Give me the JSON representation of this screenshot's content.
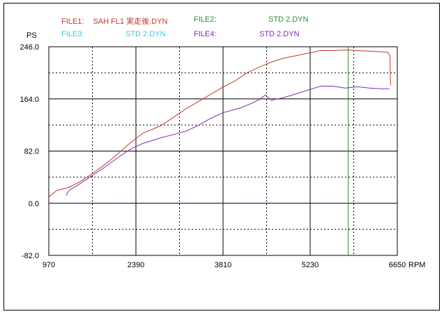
{
  "legend": {
    "file1": {
      "label": "FILE1:",
      "value": "SAH  FL1  実走後.DYN",
      "color": "#c0392b"
    },
    "file2": {
      "label": "FILE2:",
      "value": "STD 2.DYN",
      "color": "#2e8b2e"
    },
    "file3": {
      "label": "FILE3:",
      "value": "STD 2.DYN",
      "color": "#3cc8e0"
    },
    "file4": {
      "label": "FILE4:",
      "value": "STD 2.DYN",
      "color": "#7a2fb5"
    }
  },
  "chart_data": {
    "type": "line",
    "ylabel": "PS",
    "xlabel": "RPM",
    "xlim": [
      970,
      6650
    ],
    "ylim": [
      -82,
      246
    ],
    "x_ticks": [
      "970",
      "2390",
      "3810",
      "5230",
      "6650"
    ],
    "y_ticks": [
      "246.0",
      "164.0",
      "82.0",
      "0.0",
      "-82.0"
    ],
    "grid": true,
    "cursor_rpm": 5850,
    "cursor_color": "#2e8b2e",
    "zero_line_color": "#2a2ab0",
    "series": [
      {
        "name": "FILE1",
        "color": "#c0392b",
        "x": [
          970,
          1100,
          1300,
          1500,
          1700,
          1900,
          2100,
          2300,
          2500,
          2800,
          3000,
          3200,
          3500,
          3800,
          4000,
          4200,
          4400,
          4600,
          4800,
          5000,
          5200,
          5400,
          5600,
          5800,
          6000,
          6200,
          6400,
          6500,
          6530,
          6540
        ],
        "values": [
          10,
          20,
          25,
          35,
          48,
          62,
          78,
          95,
          110,
          122,
          135,
          148,
          165,
          182,
          192,
          205,
          214,
          222,
          228,
          232,
          236,
          240,
          240,
          241,
          240,
          239,
          238,
          237,
          232,
          185
        ]
      },
      {
        "name": "FILE4",
        "color": "#7a2fb5",
        "x": [
          1250,
          1300,
          1500,
          1700,
          1900,
          2100,
          2300,
          2500,
          2800,
          3000,
          3200,
          3400,
          3600,
          3800,
          4100,
          4300,
          4400,
          4500,
          4600,
          4800,
          5000,
          5200,
          5400,
          5600,
          5800,
          6000,
          6200,
          6400,
          6520
        ],
        "values": [
          12,
          20,
          32,
          45,
          58,
          72,
          85,
          94,
          103,
          108,
          113,
          122,
          133,
          142,
          150,
          158,
          163,
          170,
          162,
          166,
          172,
          178,
          184,
          184,
          181,
          183,
          181,
          180,
          180
        ]
      }
    ]
  }
}
